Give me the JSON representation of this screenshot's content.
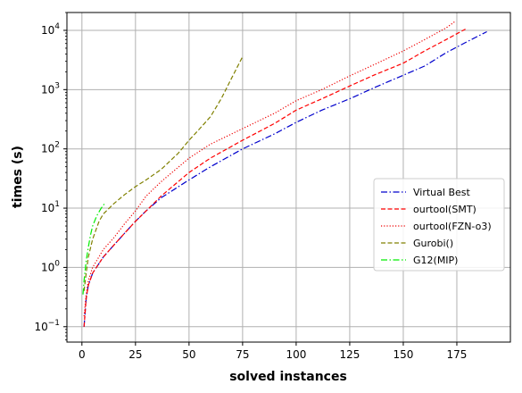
{
  "chart_data": {
    "type": "line",
    "xlabel": "solved instances",
    "ylabel": "times (s)",
    "xlim": [
      -7,
      200
    ],
    "ylim": [
      0.055,
      20000
    ],
    "yscale": "log",
    "grid": true,
    "legend_position": "center-right",
    "x_ticks": [
      {
        "value": 0,
        "label": "0"
      },
      {
        "value": 25,
        "label": "25"
      },
      {
        "value": 50,
        "label": "50"
      },
      {
        "value": 75,
        "label": "75"
      },
      {
        "value": 100,
        "label": "100"
      },
      {
        "value": 125,
        "label": "125"
      },
      {
        "value": 150,
        "label": "150"
      },
      {
        "value": 175,
        "label": "175"
      }
    ],
    "y_ticks": [
      {
        "value": 0.1,
        "base": "10",
        "exp": "−1"
      },
      {
        "value": 1,
        "base": "10",
        "exp": "0"
      },
      {
        "value": 10,
        "base": "10",
        "exp": "1"
      },
      {
        "value": 100,
        "base": "10",
        "exp": "2"
      },
      {
        "value": 1000,
        "base": "10",
        "exp": "3"
      },
      {
        "value": 10000,
        "base": "10",
        "exp": "4"
      }
    ],
    "series": [
      {
        "name": "Virtual Best",
        "color": "#0000cc",
        "dash": "dashdot",
        "points": [
          [
            1,
            0.1
          ],
          [
            2,
            0.3
          ],
          [
            3,
            0.5
          ],
          [
            5,
            0.8
          ],
          [
            10,
            1.5
          ],
          [
            15,
            2.4
          ],
          [
            20,
            3.8
          ],
          [
            25,
            6
          ],
          [
            30,
            9
          ],
          [
            37,
            15
          ],
          [
            50,
            30
          ],
          [
            60,
            50
          ],
          [
            75,
            100
          ],
          [
            90,
            180
          ],
          [
            100,
            280
          ],
          [
            112,
            450
          ],
          [
            125,
            700
          ],
          [
            137,
            1100
          ],
          [
            150,
            1750
          ],
          [
            160,
            2500
          ],
          [
            170,
            4200
          ],
          [
            180,
            6500
          ],
          [
            189,
            9500
          ]
        ]
      },
      {
        "name": "ourtool(SMT)",
        "color": "#ff0000",
        "dash": "dashed",
        "points": [
          [
            1,
            0.1
          ],
          [
            2,
            0.3
          ],
          [
            3,
            0.5
          ],
          [
            5,
            0.8
          ],
          [
            10,
            1.5
          ],
          [
            15,
            2.4
          ],
          [
            20,
            3.8
          ],
          [
            25,
            6
          ],
          [
            30,
            9
          ],
          [
            37,
            16
          ],
          [
            50,
            40
          ],
          [
            60,
            70
          ],
          [
            75,
            140
          ],
          [
            90,
            270
          ],
          [
            100,
            450
          ],
          [
            112,
            700
          ],
          [
            125,
            1150
          ],
          [
            137,
            1800
          ],
          [
            150,
            2800
          ],
          [
            160,
            4500
          ],
          [
            170,
            7000
          ],
          [
            179,
            10500
          ]
        ]
      },
      {
        "name": "ourtool(FZN-o3)",
        "color": "#ee0000",
        "dash": "dotted",
        "points": [
          [
            1,
            0.15
          ],
          [
            2,
            0.35
          ],
          [
            3,
            0.6
          ],
          [
            5,
            1.0
          ],
          [
            10,
            2.0
          ],
          [
            15,
            3.2
          ],
          [
            20,
            5.5
          ],
          [
            25,
            9
          ],
          [
            30,
            16
          ],
          [
            37,
            28
          ],
          [
            50,
            70
          ],
          [
            60,
            120
          ],
          [
            75,
            220
          ],
          [
            90,
            400
          ],
          [
            100,
            650
          ],
          [
            112,
            1000
          ],
          [
            125,
            1700
          ],
          [
            137,
            2700
          ],
          [
            150,
            4500
          ],
          [
            160,
            7000
          ],
          [
            170,
            11000
          ],
          [
            174,
            14000
          ]
        ]
      },
      {
        "name": "Gurobi()",
        "color": "#808000",
        "dash": "dashed",
        "points": [
          [
            1,
            0.4
          ],
          [
            2,
            0.8
          ],
          [
            3,
            1.5
          ],
          [
            5,
            3
          ],
          [
            8,
            6
          ],
          [
            10,
            8
          ],
          [
            15,
            12
          ],
          [
            20,
            17
          ],
          [
            25,
            23
          ],
          [
            30,
            30
          ],
          [
            37,
            45
          ],
          [
            45,
            85
          ],
          [
            50,
            140
          ],
          [
            55,
            220
          ],
          [
            60,
            350
          ],
          [
            65,
            700
          ],
          [
            70,
            1600
          ],
          [
            75,
            3600
          ]
        ]
      },
      {
        "name": "G12(MIP)",
        "color": "#00ee00",
        "dash": "dashdot",
        "points": [
          [
            0.5,
            0.35
          ],
          [
            1,
            0.6
          ],
          [
            2,
            1.3
          ],
          [
            3,
            2.2
          ],
          [
            4,
            3.5
          ],
          [
            5,
            5
          ],
          [
            7,
            7.5
          ],
          [
            9,
            10
          ],
          [
            11,
            12.5
          ]
        ]
      }
    ]
  }
}
